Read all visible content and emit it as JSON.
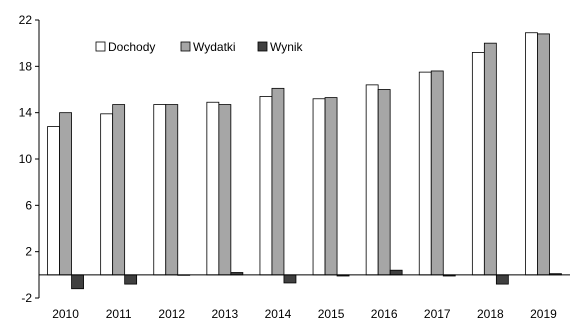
{
  "chart_data": {
    "type": "bar",
    "categories": [
      "2010",
      "2011",
      "2012",
      "2013",
      "2014",
      "2015",
      "2016",
      "2017",
      "2018",
      "2019"
    ],
    "series": [
      {
        "name": "Dochody",
        "color": "#ffffff",
        "values": [
          12.8,
          13.9,
          14.7,
          14.9,
          15.4,
          15.2,
          16.4,
          17.5,
          19.2,
          20.9
        ]
      },
      {
        "name": "Wydatki",
        "color": "#a6a6a6",
        "values": [
          14.0,
          14.7,
          14.7,
          14.7,
          16.1,
          15.3,
          16.0,
          17.6,
          20.0,
          20.8
        ]
      },
      {
        "name": "Wynik",
        "color": "#404040",
        "values": [
          -1.2,
          -0.8,
          0.0,
          0.2,
          -0.7,
          -0.1,
          0.4,
          -0.1,
          -0.8,
          0.1
        ]
      }
    ],
    "y_ticks": [
      "-2",
      "2",
      "6",
      "10",
      "14",
      "18",
      "22"
    ],
    "ylim": [
      -2,
      22
    ],
    "grid": false,
    "legend_position": "top-left"
  }
}
